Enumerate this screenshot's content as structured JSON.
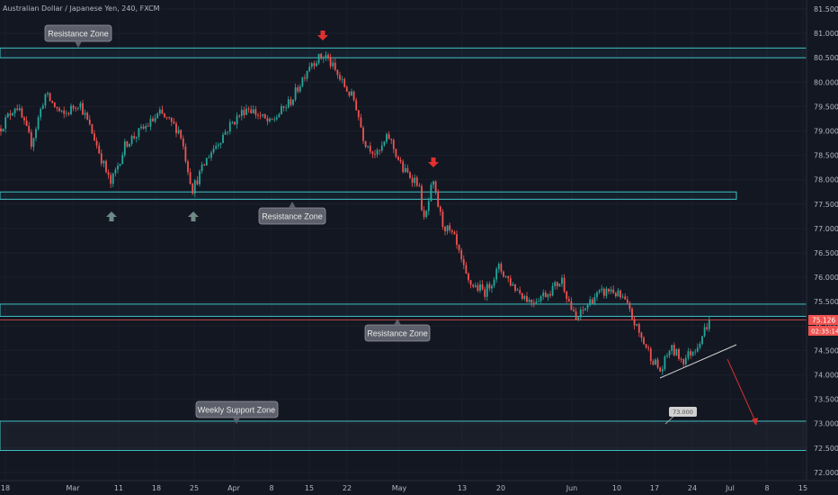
{
  "header": {
    "title": "Australian Dollar / Japanese Yen, 240, FXCM"
  },
  "price_tags": {
    "last_price": "75.126",
    "countdown": "02:35:14"
  },
  "zone_labels": {
    "top": "Resistance Zone",
    "middle": "Resistance Zone",
    "lower": "Resistance Zone",
    "support": "Weekly Support Zone",
    "target": "73.000"
  },
  "colors": {
    "background": "#131722",
    "up_candle": "#26a69a",
    "down_candle": "#ef5350",
    "zone_line": "#40c0c4",
    "grey_arrow": "#6f8a86",
    "red_arrow": "#e03030"
  },
  "chart_data": {
    "type": "candlestick",
    "title": "Australian Dollar / Japanese Yen, 240, FXCM",
    "y_ticks": [
      "81.500",
      "81.000",
      "80.500",
      "80.000",
      "79.500",
      "79.000",
      "78.500",
      "78.000",
      "77.500",
      "77.000",
      "76.500",
      "76.000",
      "75.500",
      "75.000",
      "74.500",
      "74.000",
      "73.500",
      "73.000",
      "72.500",
      "72.000"
    ],
    "x_ticks": [
      "18",
      "Mar",
      "11",
      "18",
      "25",
      "Apr",
      "8",
      "15",
      "22",
      "May",
      "13",
      "20",
      "Jun",
      "10",
      "17",
      "24",
      "Jul",
      "8",
      "15"
    ],
    "ylim": [
      71.9,
      81.65
    ],
    "last_price": 75.126,
    "path_anchors": [
      {
        "x": 0,
        "y": 79.05
      },
      {
        "x": 18,
        "y": 79.55
      },
      {
        "x": 35,
        "y": 78.75
      },
      {
        "x": 50,
        "y": 79.75
      },
      {
        "x": 70,
        "y": 79.3
      },
      {
        "x": 88,
        "y": 79.6
      },
      {
        "x": 105,
        "y": 78.85
      },
      {
        "x": 123,
        "y": 77.9
      },
      {
        "x": 140,
        "y": 78.75
      },
      {
        "x": 160,
        "y": 79.05
      },
      {
        "x": 178,
        "y": 79.35
      },
      {
        "x": 200,
        "y": 79.0
      },
      {
        "x": 214,
        "y": 77.8
      },
      {
        "x": 232,
        "y": 78.5
      },
      {
        "x": 255,
        "y": 79.1
      },
      {
        "x": 275,
        "y": 79.5
      },
      {
        "x": 300,
        "y": 79.15
      },
      {
        "x": 325,
        "y": 79.65
      },
      {
        "x": 345,
        "y": 80.4
      },
      {
        "x": 362,
        "y": 80.55
      },
      {
        "x": 380,
        "y": 80.0
      },
      {
        "x": 395,
        "y": 79.6
      },
      {
        "x": 405,
        "y": 78.8
      },
      {
        "x": 420,
        "y": 78.5
      },
      {
        "x": 432,
        "y": 78.9
      },
      {
        "x": 448,
        "y": 78.2
      },
      {
        "x": 465,
        "y": 77.95
      },
      {
        "x": 472,
        "y": 77.1
      },
      {
        "x": 481,
        "y": 77.95
      },
      {
        "x": 492,
        "y": 77.1
      },
      {
        "x": 505,
        "y": 76.8
      },
      {
        "x": 520,
        "y": 75.9
      },
      {
        "x": 540,
        "y": 75.7
      },
      {
        "x": 555,
        "y": 76.2
      },
      {
        "x": 572,
        "y": 75.8
      },
      {
        "x": 590,
        "y": 75.5
      },
      {
        "x": 610,
        "y": 75.7
      },
      {
        "x": 625,
        "y": 75.95
      },
      {
        "x": 640,
        "y": 75.1
      },
      {
        "x": 660,
        "y": 75.6
      },
      {
        "x": 680,
        "y": 75.75
      },
      {
        "x": 695,
        "y": 75.5
      },
      {
        "x": 712,
        "y": 74.8
      },
      {
        "x": 725,
        "y": 74.35
      },
      {
        "x": 735,
        "y": 74.05
      },
      {
        "x": 745,
        "y": 74.55
      },
      {
        "x": 760,
        "y": 74.3
      },
      {
        "x": 775,
        "y": 74.6
      },
      {
        "x": 789,
        "y": 75.12
      }
    ],
    "zones": [
      {
        "name": "Resistance Zone",
        "from": 80.5,
        "to": 80.7
      },
      {
        "name": "Resistance Zone",
        "from": 77.6,
        "to": 77.75
      },
      {
        "name": "Resistance Zone",
        "from": 75.2,
        "to": 75.45
      },
      {
        "name": "Weekly Support Zone",
        "from": 72.45,
        "to": 73.05
      }
    ],
    "lines": [
      {
        "name": "red horizontal",
        "y": 75.1
      },
      {
        "name": "trendline",
        "from": [
          17,
          74.0
        ],
        "to": [
          24,
          74.6
        ]
      },
      {
        "name": "projection",
        "from": [
          25,
          74.35
        ],
        "to": [
          28,
          73.05
        ]
      }
    ],
    "annotations": [
      "Resistance Zone",
      "Resistance Zone",
      "Resistance Zone",
      "Weekly Support Zone",
      "73.000"
    ]
  }
}
